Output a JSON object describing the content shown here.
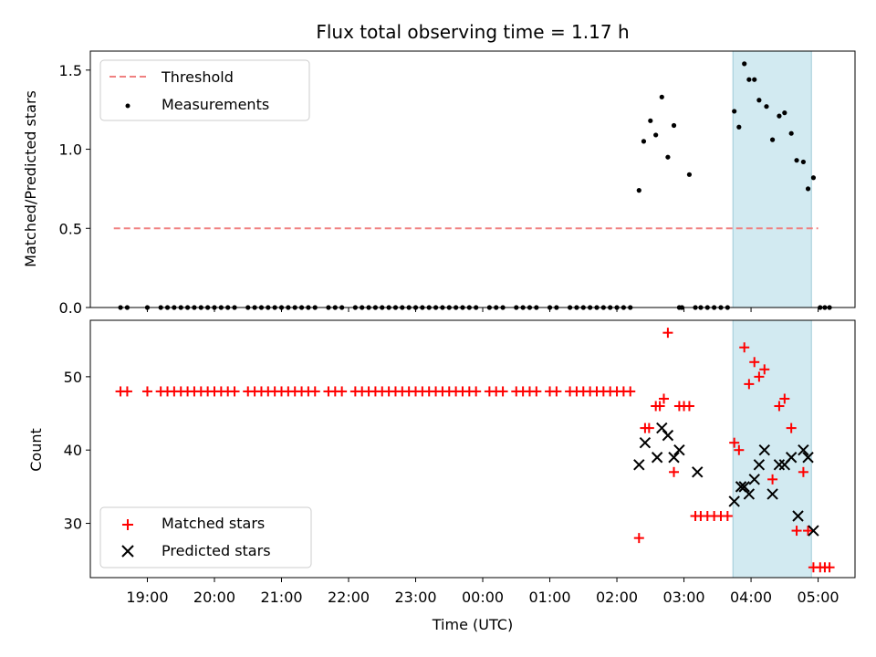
{
  "chart_data": [
    {
      "type": "scatter",
      "title": "Flux total observing time = 1.17 h",
      "xlabel": "",
      "ylabel": "Matched/Predicted stars",
      "x_unit": "hours since 00:00 UTC",
      "xlim": [
        -5.85,
        5.55
      ],
      "ylim": [
        0.0,
        1.62
      ],
      "yticks": [
        0.0,
        0.5,
        1.0,
        1.5
      ],
      "ytick_labels": [
        "0.0",
        "0.5",
        "1.0",
        "1.5"
      ],
      "highlight_span": [
        3.73,
        4.9
      ],
      "legend": {
        "position": "top-left",
        "entries": [
          {
            "name": "Threshold",
            "style": "dashed-line",
            "color": "#f08080"
          },
          {
            "name": "Measurements",
            "style": "dot",
            "color": "#000000"
          }
        ]
      },
      "threshold": {
        "name": "Threshold",
        "y": 0.5,
        "x": [
          -5.5,
          5.0
        ],
        "color": "#f08080"
      },
      "series": [
        {
          "name": "Measurements",
          "color": "#000000",
          "x": [
            -5.4,
            -5.3,
            -5.0,
            -4.8,
            -4.7,
            -4.6,
            -4.5,
            -4.4,
            -4.3,
            -4.2,
            -4.1,
            -4.0,
            -3.9,
            -3.8,
            -3.7,
            -3.5,
            -3.4,
            -3.3,
            -3.2,
            -3.1,
            -3.0,
            -2.9,
            -2.8,
            -2.7,
            -2.6,
            -2.5,
            -2.3,
            -2.2,
            -2.1,
            -1.9,
            -1.8,
            -1.7,
            -1.6,
            -1.5,
            -1.4,
            -1.3,
            -1.2,
            -1.1,
            -1.0,
            -0.9,
            -0.8,
            -0.7,
            -0.6,
            -0.5,
            -0.4,
            -0.3,
            -0.2,
            -0.1,
            0.1,
            0.2,
            0.3,
            0.5,
            0.6,
            0.7,
            0.8,
            1.0,
            1.1,
            1.3,
            1.4,
            1.5,
            1.6,
            1.7,
            1.8,
            1.9,
            2.0,
            2.1,
            2.2,
            2.33,
            2.4,
            2.5,
            2.58,
            2.67,
            2.76,
            2.85,
            2.93,
            2.97,
            3.08,
            3.17,
            3.25,
            3.35,
            3.45,
            3.55,
            3.65,
            3.75,
            3.82,
            3.9,
            3.97,
            4.05,
            4.12,
            4.23,
            4.32,
            4.42,
            4.5,
            4.6,
            4.68,
            4.78,
            4.85,
            4.93,
            5.03,
            5.1,
            5.17
          ],
          "values": [
            0,
            0,
            0,
            0,
            0,
            0,
            0,
            0,
            0,
            0,
            0,
            0,
            0,
            0,
            0,
            0,
            0,
            0,
            0,
            0,
            0,
            0,
            0,
            0,
            0,
            0,
            0,
            0,
            0,
            0,
            0,
            0,
            0,
            0,
            0,
            0,
            0,
            0,
            0,
            0,
            0,
            0,
            0,
            0,
            0,
            0,
            0,
            0,
            0,
            0,
            0,
            0,
            0,
            0,
            0,
            0,
            0,
            0,
            0,
            0,
            0,
            0,
            0,
            0,
            0,
            0,
            0,
            0.74,
            1.05,
            1.18,
            1.09,
            1.33,
            0.95,
            1.15,
            0,
            0,
            0.84,
            0,
            0,
            0,
            0,
            0,
            0,
            1.24,
            1.14,
            1.54,
            1.44,
            1.44,
            1.31,
            1.27,
            1.06,
            1.21,
            1.23,
            1.1,
            0.93,
            0.92,
            0.75,
            0.82,
            0,
            0,
            0
          ]
        }
      ]
    },
    {
      "type": "scatter",
      "title": "",
      "xlabel": "Time (UTC)",
      "ylabel": "Count",
      "x_unit": "hours since 00:00 UTC",
      "xlim": [
        -5.85,
        5.55
      ],
      "ylim": [
        22.6,
        57.7
      ],
      "yticks": [
        30,
        40,
        50
      ],
      "ytick_labels": [
        "30",
        "40",
        "50"
      ],
      "xticks": [
        -5,
        -4,
        -3,
        -2,
        -1,
        0,
        1,
        2,
        3,
        4,
        5
      ],
      "xtick_labels": [
        "19:00",
        "20:00",
        "21:00",
        "22:00",
        "23:00",
        "00:00",
        "01:00",
        "02:00",
        "03:00",
        "04:00",
        "05:00"
      ],
      "highlight_span": [
        3.73,
        4.9
      ],
      "legend": {
        "position": "bottom-left",
        "entries": [
          {
            "name": "Matched stars",
            "style": "plus",
            "color": "#ff0000"
          },
          {
            "name": "Predicted stars",
            "style": "x",
            "color": "#000000"
          }
        ]
      },
      "series": [
        {
          "name": "Matched stars",
          "color": "#ff0000",
          "marker": "plus",
          "x": [
            -5.4,
            -5.3,
            -5.0,
            -4.8,
            -4.7,
            -4.6,
            -4.5,
            -4.4,
            -4.3,
            -4.2,
            -4.1,
            -4.0,
            -3.9,
            -3.8,
            -3.7,
            -3.5,
            -3.4,
            -3.3,
            -3.2,
            -3.1,
            -3.0,
            -2.9,
            -2.8,
            -2.7,
            -2.6,
            -2.5,
            -2.3,
            -2.2,
            -2.1,
            -1.9,
            -1.8,
            -1.7,
            -1.6,
            -1.5,
            -1.4,
            -1.3,
            -1.2,
            -1.1,
            -1.0,
            -0.9,
            -0.8,
            -0.7,
            -0.6,
            -0.5,
            -0.4,
            -0.3,
            -0.2,
            -0.1,
            0.1,
            0.2,
            0.3,
            0.5,
            0.6,
            0.7,
            0.8,
            1.0,
            1.1,
            1.3,
            1.4,
            1.5,
            1.6,
            1.7,
            1.8,
            1.9,
            2.0,
            2.1,
            2.2,
            2.33,
            2.42,
            2.48,
            2.58,
            2.64,
            2.7,
            2.76,
            2.85,
            2.93,
            3.0,
            3.08,
            3.17,
            3.25,
            3.35,
            3.45,
            3.55,
            3.65,
            3.75,
            3.82,
            3.9,
            3.97,
            4.05,
            4.12,
            4.2,
            4.32,
            4.42,
            4.5,
            4.6,
            4.68,
            4.78,
            4.85,
            4.93,
            5.03,
            5.1,
            5.17
          ],
          "values": [
            48,
            48,
            48,
            48,
            48,
            48,
            48,
            48,
            48,
            48,
            48,
            48,
            48,
            48,
            48,
            48,
            48,
            48,
            48,
            48,
            48,
            48,
            48,
            48,
            48,
            48,
            48,
            48,
            48,
            48,
            48,
            48,
            48,
            48,
            48,
            48,
            48,
            48,
            48,
            48,
            48,
            48,
            48,
            48,
            48,
            48,
            48,
            48,
            48,
            48,
            48,
            48,
            48,
            48,
            48,
            48,
            48,
            48,
            48,
            48,
            48,
            48,
            48,
            48,
            48,
            48,
            48,
            28,
            43,
            43,
            46,
            46,
            47,
            56,
            37,
            46,
            46,
            46,
            31,
            31,
            31,
            31,
            31,
            31,
            41,
            40,
            54,
            49,
            52,
            50,
            51,
            36,
            46,
            47,
            43,
            29,
            37,
            29,
            24,
            24,
            24,
            24
          ]
        },
        {
          "name": "Predicted stars",
          "color": "#000000",
          "marker": "x",
          "x": [
            2.33,
            2.42,
            2.6,
            2.67,
            2.76,
            2.85,
            2.93,
            3.2,
            3.75,
            3.85,
            3.9,
            3.97,
            4.05,
            4.12,
            4.2,
            4.32,
            4.42,
            4.5,
            4.6,
            4.7,
            4.78,
            4.85,
            4.93
          ],
          "values": [
            38,
            41,
            39,
            43,
            42,
            39,
            40,
            37,
            33,
            35,
            35,
            34,
            36,
            38,
            40,
            34,
            38,
            38,
            39,
            31,
            40,
            39,
            29
          ]
        }
      ]
    }
  ]
}
